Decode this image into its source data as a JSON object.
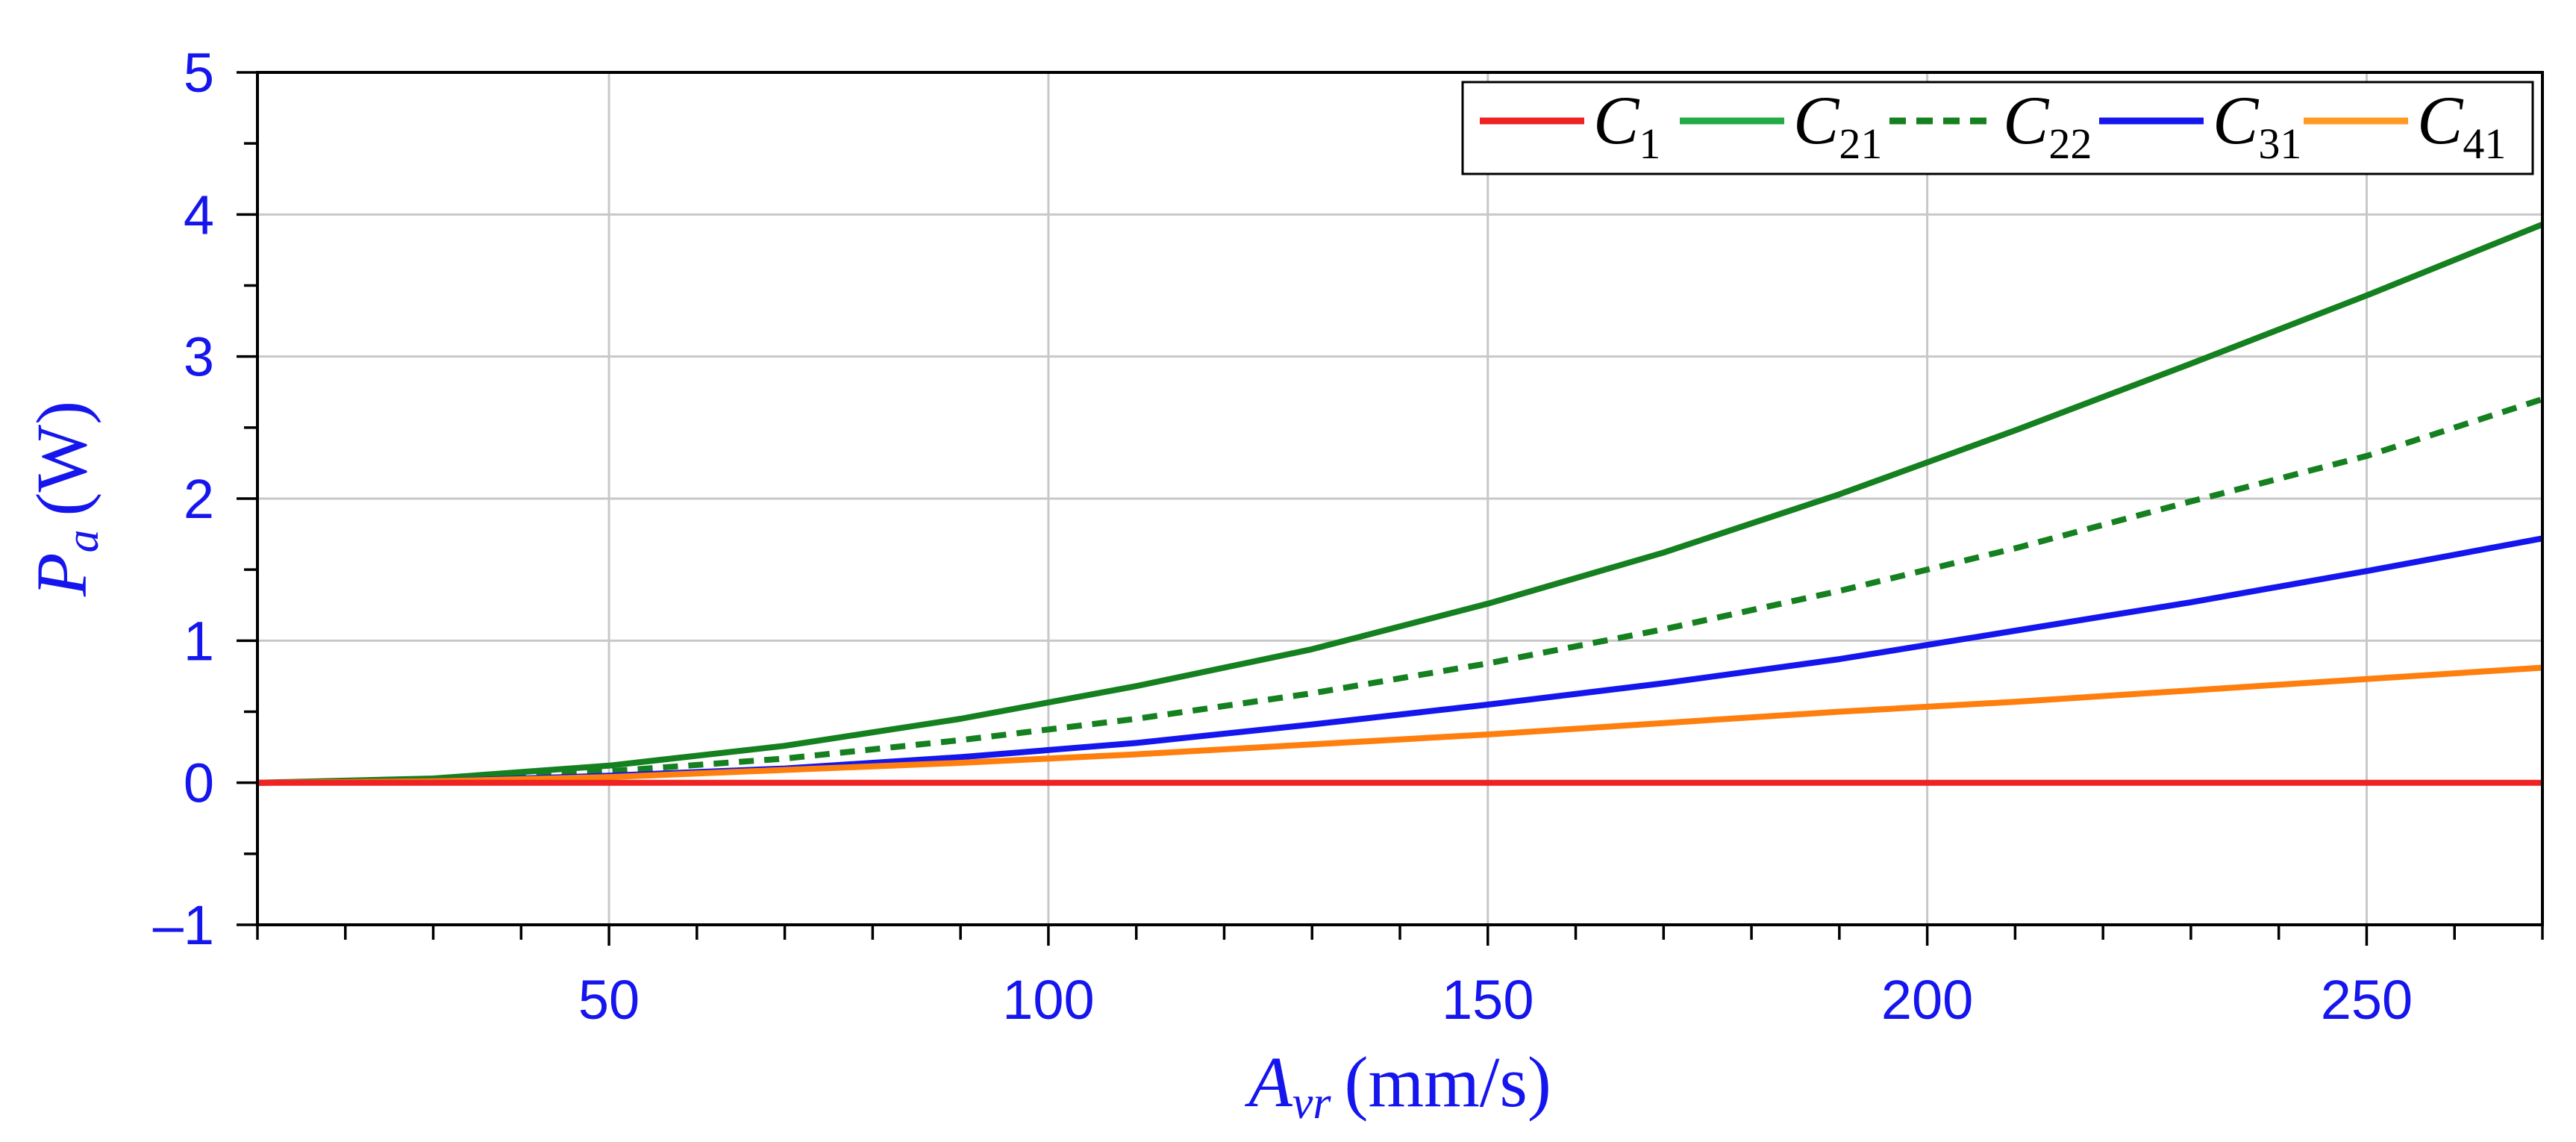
{
  "chart_data": {
    "type": "line",
    "title": "",
    "xlabel": {
      "main": "A",
      "sub": "vr",
      "unit": "(mm/s)"
    },
    "ylabel": {
      "main": "P",
      "sub": "a",
      "unit": "(W)"
    },
    "xlim": [
      10,
      270
    ],
    "ylim": [
      -1,
      5
    ],
    "xticks": [
      50,
      100,
      150,
      200,
      250
    ],
    "yticks": [
      -1,
      0,
      1,
      2,
      3,
      4,
      5
    ],
    "ytick_labels": [
      "–1",
      "0",
      "1",
      "2",
      "3",
      "4",
      "5"
    ],
    "grid": true,
    "legend_position": "top-right",
    "x": [
      10,
      30,
      50,
      70,
      90,
      110,
      130,
      150,
      170,
      190,
      210,
      230,
      250,
      270
    ],
    "series": [
      {
        "name": "C",
        "sub": "1",
        "color": "#ee2222",
        "dash": "solid",
        "values": [
          0,
          0,
          0,
          0,
          0,
          0,
          0,
          0,
          0,
          0,
          0,
          0,
          0,
          0
        ]
      },
      {
        "name": "C",
        "sub": "21",
        "color": "#15801f",
        "dash": "solid",
        "values": [
          0,
          0.03,
          0.12,
          0.26,
          0.45,
          0.68,
          0.94,
          1.26,
          1.62,
          2.03,
          2.48,
          2.95,
          3.43,
          3.93
        ]
      },
      {
        "name": "C",
        "sub": "22",
        "color": "#15801f",
        "dash": "dashed",
        "values": [
          0,
          0.02,
          0.08,
          0.17,
          0.3,
          0.45,
          0.63,
          0.84,
          1.08,
          1.35,
          1.65,
          1.98,
          2.3,
          2.7
        ]
      },
      {
        "name": "C",
        "sub": "31",
        "color": "#1515ee",
        "dash": "solid",
        "values": [
          0,
          0.01,
          0.05,
          0.1,
          0.18,
          0.28,
          0.41,
          0.55,
          0.7,
          0.87,
          1.07,
          1.27,
          1.49,
          1.72
        ]
      },
      {
        "name": "C",
        "sub": "41",
        "color": "#ff7f0e",
        "dash": "solid",
        "values": [
          0,
          0.01,
          0.04,
          0.09,
          0.14,
          0.2,
          0.27,
          0.34,
          0.42,
          0.5,
          0.57,
          0.65,
          0.73,
          0.81
        ]
      }
    ],
    "legend_line_colors": [
      "#ee2222",
      "#22aa44",
      "#15801f",
      "#1515ee",
      "#ff9922"
    ]
  }
}
